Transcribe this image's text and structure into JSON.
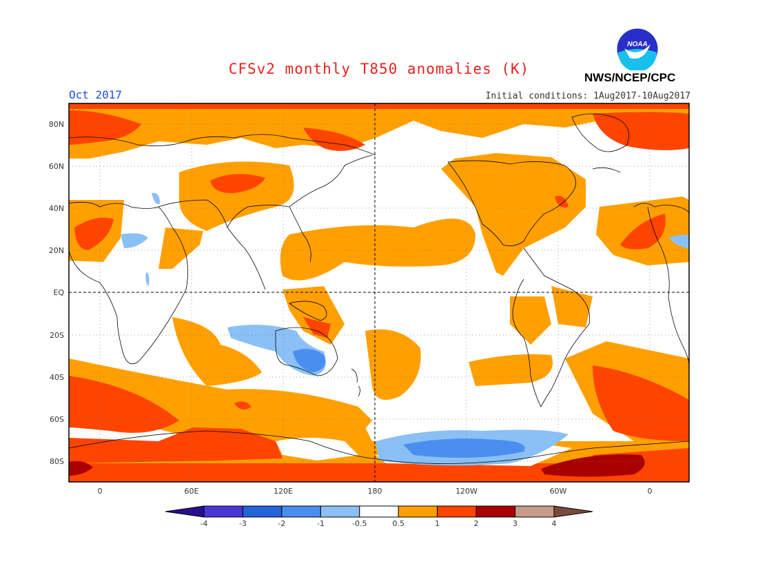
{
  "title": "CFSv2 monthly T850 anomalies (K)",
  "period": "Oct 2017",
  "initial_conditions": "Initial conditions: 1Aug2017-10Aug2017",
  "agency": "NWS/NCEP/CPC",
  "logo_text": "NOAA",
  "map": {
    "lat_labels": [
      "80N",
      "60N",
      "40N",
      "20N",
      "EQ",
      "20S",
      "40S",
      "60S",
      "80S"
    ],
    "lon_labels": [
      "0",
      "60E",
      "120E",
      "180",
      "120W",
      "60W",
      "0"
    ],
    "reference_lines": [
      "EQ",
      "180"
    ]
  },
  "legend": {
    "labels": [
      "-4",
      "-3",
      "-2",
      "-1",
      "-0.5",
      "0.5",
      "1",
      "2",
      "3",
      "4"
    ],
    "colors": [
      "#2a0f8c",
      "#4a36d6",
      "#2364d9",
      "#4a8ff0",
      "#8ac0f5",
      "#ffffff",
      "#ffa000",
      "#ff4400",
      "#a80000",
      "#c89a8a",
      "#7a4a3a"
    ]
  },
  "colors": {
    "title": "#e8211e",
    "period": "#1f4fe0",
    "warm_1": "#ffa000",
    "warm_2": "#ff4400",
    "warm_3": "#a80000",
    "cool_1": "#8ac0f5",
    "cool_2": "#4a8ff0"
  }
}
